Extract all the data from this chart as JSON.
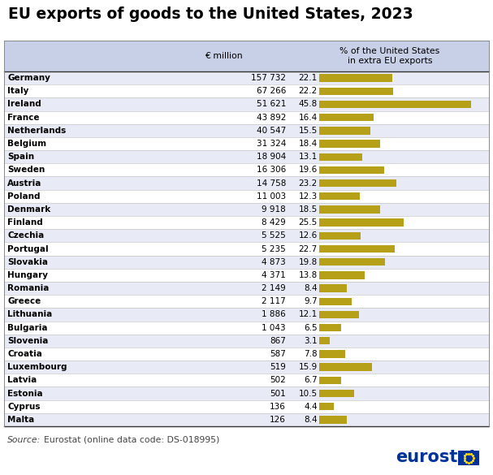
{
  "title": "EU exports of goods to the United States, 2023",
  "header_col2": "€ million",
  "header_col3": "% of the United States\nin extra EU exports",
  "countries": [
    "Germany",
    "Italy",
    "Ireland",
    "France",
    "Netherlands",
    "Belgium",
    "Spain",
    "Sweden",
    "Austria",
    "Poland",
    "Denmark",
    "Finland",
    "Czechia",
    "Portugal",
    "Slovakia",
    "Hungary",
    "Romania",
    "Greece",
    "Lithuania",
    "Bulgaria",
    "Slovenia",
    "Croatia",
    "Luxembourg",
    "Latvia",
    "Estonia",
    "Cyprus",
    "Malta"
  ],
  "values_million": [
    "157 732",
    "67 266",
    "51 621",
    "43 892",
    "40 547",
    "31 324",
    "18 904",
    "16 306",
    "14 758",
    "11 003",
    "9 918",
    "8 429",
    "5 525",
    "5 235",
    "4 873",
    "4 371",
    "2 149",
    "2 117",
    "1 886",
    "1 043",
    "867",
    "587",
    "519",
    "502",
    "501",
    "136",
    "126"
  ],
  "values_pct": [
    22.1,
    22.2,
    45.8,
    16.4,
    15.5,
    18.4,
    13.1,
    19.6,
    23.2,
    12.3,
    18.5,
    25.5,
    12.6,
    22.7,
    19.8,
    13.8,
    8.4,
    9.7,
    12.1,
    6.5,
    3.1,
    7.8,
    15.9,
    6.7,
    10.5,
    4.4,
    8.4
  ],
  "bar_color": "#b5a018",
  "header_bg": "#c8d0e8",
  "row_bg_light": "#e8ebf5",
  "row_bg_white": "#ffffff",
  "source_label": "Source:",
  "source_rest": "  Eurostat (online data code: DS-018995)",
  "fig_width": 6.07,
  "fig_height": 5.85,
  "dpi": 100
}
